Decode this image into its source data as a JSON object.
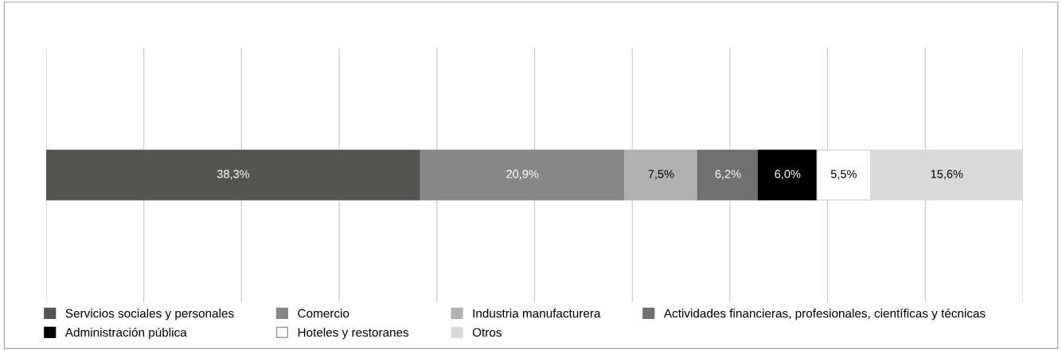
{
  "chart_data": {
    "type": "bar",
    "orientation": "horizontal",
    "stacked": true,
    "categories": [
      null
    ],
    "series": [
      {
        "name": "Servicios sociales y personales",
        "color": "#545452",
        "values": [
          38.3
        ],
        "value_labels": [
          "38,3%"
        ]
      },
      {
        "name": "Comercio",
        "color": "#878787",
        "values": [
          20.9
        ],
        "value_labels": [
          "20,9%"
        ]
      },
      {
        "name": "Industria manufacturera",
        "color": "#b1b1b1",
        "values": [
          7.5
        ],
        "value_labels": [
          "7,5%"
        ]
      },
      {
        "name": "Actividades financieras, profesionales, científicas y técnicas",
        "color": "#707070",
        "values": [
          6.2
        ],
        "value_labels": [
          "6,2%"
        ]
      },
      {
        "name": "Administración pública",
        "color": "#000000",
        "values": [
          6.0
        ],
        "value_labels": [
          "6,0%"
        ]
      },
      {
        "name": "Hoteles y restoranes",
        "color": "#ffffff",
        "values": [
          5.5
        ],
        "value_labels": [
          "5,5%"
        ]
      },
      {
        "name": "Otros",
        "color": "#d9d9d9",
        "values": [
          15.6
        ],
        "value_labels": [
          "15,6%"
        ]
      }
    ],
    "xlim": [
      0,
      100
    ],
    "xticks": [
      {
        "value": 0,
        "label": null
      },
      {
        "value": 10,
        "label": null
      },
      {
        "value": 20,
        "label": null
      },
      {
        "value": 30,
        "label": null
      },
      {
        "value": 40,
        "label": null
      },
      {
        "value": 50,
        "label": null
      },
      {
        "value": 60,
        "label": null
      },
      {
        "value": 70,
        "label": null
      },
      {
        "value": 80,
        "label": null
      },
      {
        "value": 90,
        "label": null
      },
      {
        "value": 100,
        "label": null
      }
    ],
    "grid": "x",
    "legend": "bottom"
  }
}
